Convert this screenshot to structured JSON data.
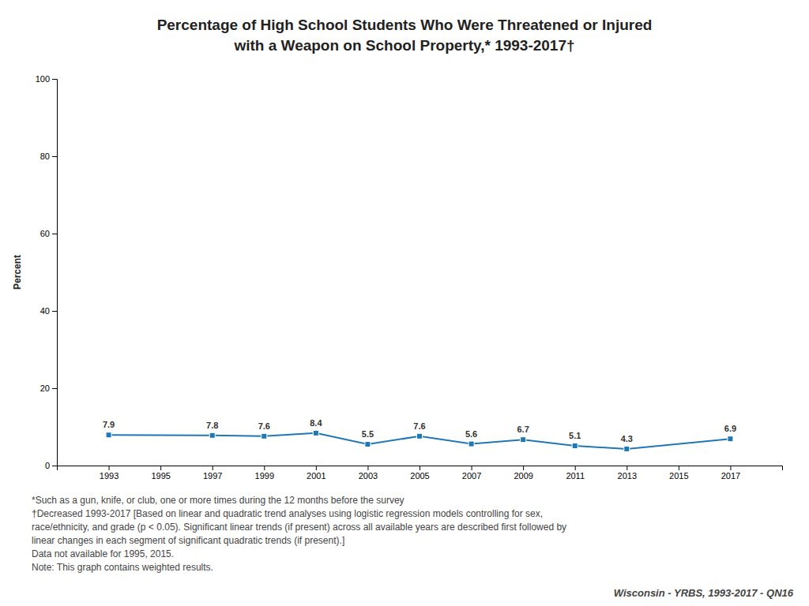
{
  "chart_data": {
    "type": "line",
    "title": "Percentage of High School Students Who Were Threatened or Injured",
    "subtitle": "with a Weapon on School Property,* 1993-2017†",
    "x": [
      1993,
      1997,
      1999,
      2001,
      2003,
      2005,
      2007,
      2009,
      2011,
      2013,
      2017
    ],
    "values": [
      7.9,
      7.8,
      7.6,
      8.4,
      5.5,
      7.6,
      5.6,
      6.7,
      5.1,
      4.3,
      6.9
    ],
    "xlim": [
      1991,
      2019
    ],
    "xticks": [
      1993,
      1995,
      1997,
      1999,
      2001,
      2003,
      2005,
      2007,
      2009,
      2011,
      2013,
      2015,
      2017
    ],
    "ylim": [
      0,
      100
    ],
    "yticks": [
      0,
      20,
      40,
      60,
      80,
      100
    ],
    "ylabel": "Percent",
    "marker": "square",
    "data_labels": true,
    "grid": false,
    "footnotes": [
      "*Such as a gun, knife, or club, one or more times during the 12 months before the survey",
      "†Decreased 1993-2017 [Based on linear and quadratic trend analyses using logistic regression models controlling for sex,",
      "race/ethnicity, and grade (p < 0.05). Significant linear trends (if present) across all available years are described first followed by",
      "linear changes in each segment of significant quadratic trends (if present).]",
      "Data not available for 1995, 2015.",
      "Note: This graph contains weighted results."
    ],
    "source": "Wisconsin - YRBS, 1993-2017 - QN16"
  }
}
